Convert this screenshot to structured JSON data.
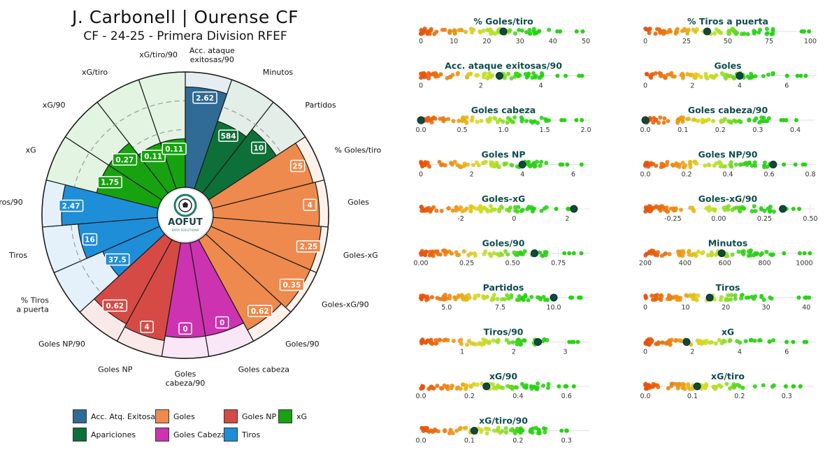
{
  "header": {
    "title": "J. Carbonell  |  Ourense CF",
    "subtitle": "CF - 24-25 - Primera Division RFEF"
  },
  "logo": {
    "text": "AOFUT",
    "tagline": "DATA SOLUTIONS"
  },
  "colors": {
    "acciones": "#2f6b94",
    "apariciones": "#0d7038",
    "goles": "#ee8a4d",
    "goles_cabeza": "#cd32b0",
    "goles_np": "#d64a45",
    "tiros": "#1f8ed8",
    "xg": "#16a30f",
    "strip_title": "#0f4c4e"
  },
  "legend": [
    {
      "label": "Acc. Atq. Exitosas",
      "color": "#2f6b94"
    },
    {
      "label": "Goles",
      "color": "#ee8a4d"
    },
    {
      "label": "Goles NP",
      "color": "#d64a45"
    },
    {
      "label": "xG",
      "color": "#16a30f"
    },
    {
      "label": "Apariciones",
      "color": "#0d7038"
    },
    {
      "label": "Goles Cabeza",
      "color": "#cd32b0"
    },
    {
      "label": "Tiros",
      "color": "#1f8ed8"
    }
  ],
  "chart_data": [
    {
      "type": "pie",
      "chart": "pizza-percentile",
      "title": "J. Carbonell  |  Ourense CF",
      "subtitle": "CF - 24-25 - Primera Division RFEF",
      "slices": [
        {
          "label": "Acc. ataque exitosas/90",
          "value": "2.62",
          "percentile": 87,
          "group": "acciones"
        },
        {
          "label": "Minutos",
          "value": "584",
          "percentile": 62,
          "group": "apariciones"
        },
        {
          "label": "Partidos",
          "value": "10",
          "percentile": 70,
          "group": "apariciones"
        },
        {
          "label": "% Goles/tiro",
          "value": "25",
          "percentile": 90,
          "group": "goles"
        },
        {
          "label": "Goles",
          "value": "4",
          "percentile": 92,
          "group": "goles"
        },
        {
          "label": "Goles-xG",
          "value": "2.25",
          "percentile": 94,
          "group": "goles"
        },
        {
          "label": "Goles-xG/90",
          "value": "0.35",
          "percentile": 94,
          "group": "goles"
        },
        {
          "label": "Goles/90",
          "value": "0.62",
          "percentile": 89,
          "group": "goles"
        },
        {
          "label": "Goles cabeza",
          "value": "0",
          "percentile": 82,
          "group": "goles_cabeza"
        },
        {
          "label": "Goles cabeza/90",
          "value": "0",
          "percentile": 82,
          "group": "goles_cabeza"
        },
        {
          "label": "Goles NP",
          "value": "4",
          "percentile": 86,
          "group": "goles_np"
        },
        {
          "label": "Goles NP/90",
          "value": "0.62",
          "percentile": 83,
          "group": "goles_np"
        },
        {
          "label": "% Tiros a puerta",
          "value": "37.5",
          "percentile": 54,
          "group": "tiros"
        },
        {
          "label": "Tiros",
          "value": "16",
          "percentile": 69,
          "group": "tiros"
        },
        {
          "label": "Tiros/90",
          "value": "2.47",
          "percentile": 83,
          "group": "tiros"
        },
        {
          "label": "xG",
          "value": "1.75",
          "percentile": 55,
          "group": "xg"
        },
        {
          "label": "xG/90",
          "value": "0.27",
          "percentile": 55,
          "group": "xg"
        },
        {
          "label": "xG/tiro",
          "value": "0.11",
          "percentile": 42,
          "group": "xg"
        },
        {
          "label": "xG/tiro/90",
          "value": "0.11",
          "percentile": 42,
          "group": "xg"
        }
      ]
    },
    {
      "type": "scatter",
      "chart": "distribution-strips",
      "strips": [
        {
          "title": "% Goles/tiro",
          "ticks": [
            "0",
            "10",
            "20",
            "30",
            "40",
            "50"
          ],
          "tick_values": [
            0,
            10,
            20,
            30,
            40,
            50
          ],
          "range": [
            0,
            50
          ],
          "player": 25
        },
        {
          "title": "% Tiros a puerta",
          "ticks": [
            "0",
            "25",
            "50",
            "75",
            "100"
          ],
          "tick_values": [
            0,
            25,
            50,
            75,
            100
          ],
          "range": [
            0,
            100
          ],
          "player": 37.5
        },
        {
          "title": "Acc. ataque exitosas/90",
          "ticks": [
            "0",
            "2",
            "4"
          ],
          "tick_values": [
            0,
            2,
            4
          ],
          "range": [
            0,
            5.5
          ],
          "player": 2.62
        },
        {
          "title": "Goles",
          "ticks": [
            "0",
            "2",
            "4",
            "6"
          ],
          "tick_values": [
            0,
            2,
            4,
            6
          ],
          "range": [
            0,
            7
          ],
          "player": 4
        },
        {
          "title": "Goles cabeza",
          "ticks": [
            "0.0",
            "0.5",
            "1.0",
            "1.5",
            "2.0"
          ],
          "tick_values": [
            0,
            0.5,
            1,
            1.5,
            2
          ],
          "range": [
            0,
            2
          ],
          "player": 0
        },
        {
          "title": "Goles cabeza/90",
          "ticks": [
            "0.0",
            "0.1",
            "0.2",
            "0.3",
            "0.4"
          ],
          "tick_values": [
            0,
            0.1,
            0.2,
            0.3,
            0.4
          ],
          "range": [
            0,
            0.44
          ],
          "player": 0
        },
        {
          "title": "Goles NP",
          "ticks": [
            "0",
            "2",
            "4",
            "6"
          ],
          "tick_values": [
            0,
            2,
            4,
            6
          ],
          "range": [
            0,
            6.5
          ],
          "player": 4
        },
        {
          "title": "Goles NP/90",
          "ticks": [
            "0.0",
            "0.2",
            "0.4",
            "0.6",
            "0.8"
          ],
          "tick_values": [
            0,
            0.2,
            0.4,
            0.6,
            0.8
          ],
          "range": [
            0,
            0.8
          ],
          "player": 0.62
        },
        {
          "title": "Goles-xG",
          "ticks": [
            "-2",
            "0",
            "2"
          ],
          "tick_values": [
            -2,
            0,
            2
          ],
          "range": [
            -3.5,
            2.7
          ],
          "player": 2.25
        },
        {
          "title": "Goles-xG/90",
          "ticks": [
            "-0.25",
            "0.00",
            "0.25",
            "0.50"
          ],
          "tick_values": [
            -0.25,
            0,
            0.25,
            0.5
          ],
          "range": [
            -0.4,
            0.5
          ],
          "player": 0.35
        },
        {
          "title": "Goles/90",
          "ticks": [
            "0.00",
            "0.25",
            "0.50",
            "0.75"
          ],
          "tick_values": [
            0,
            0.25,
            0.5,
            0.75
          ],
          "range": [
            0,
            0.9
          ],
          "player": 0.62
        },
        {
          "title": "Minutos",
          "ticks": [
            "200",
            "400",
            "600",
            "800",
            "1000"
          ],
          "tick_values": [
            200,
            400,
            600,
            800,
            1000
          ],
          "range": [
            200,
            1030
          ],
          "player": 584
        },
        {
          "title": "Partidos",
          "ticks": [
            "5.0",
            "7.5",
            "10.0"
          ],
          "tick_values": [
            5,
            7.5,
            10
          ],
          "range": [
            3.8,
            11.5
          ],
          "player": 10
        },
        {
          "title": "Tiros",
          "ticks": [
            "0",
            "10",
            "20",
            "30",
            "40"
          ],
          "tick_values": [
            0,
            10,
            20,
            30,
            40
          ],
          "range": [
            0,
            41
          ],
          "player": 16
        },
        {
          "title": "Tiros/90",
          "ticks": [
            "1",
            "2",
            "3"
          ],
          "tick_values": [
            1,
            2,
            3
          ],
          "range": [
            0.2,
            3.4
          ],
          "player": 2.47
        },
        {
          "title": "xG",
          "ticks": [
            "0",
            "2",
            "4",
            "6"
          ],
          "tick_values": [
            0,
            2,
            4,
            6
          ],
          "range": [
            0,
            7
          ],
          "player": 1.75
        },
        {
          "title": "xG/90",
          "ticks": [
            "0.0",
            "0.2",
            "0.4",
            "0.6"
          ],
          "tick_values": [
            0,
            0.2,
            0.4,
            0.6
          ],
          "range": [
            0,
            0.68
          ],
          "player": 0.27
        },
        {
          "title": "xG/tiro",
          "ticks": [
            "0.0",
            "0.1",
            "0.2",
            "0.3"
          ],
          "tick_values": [
            0,
            0.1,
            0.2,
            0.3
          ],
          "range": [
            0,
            0.35
          ],
          "player": 0.11
        },
        {
          "title": "xG/tiro/90",
          "ticks": [
            "0.0",
            "0.1",
            "0.2",
            "0.3"
          ],
          "tick_values": [
            0,
            0.1,
            0.2,
            0.3
          ],
          "range": [
            0,
            0.34
          ],
          "player": 0.11
        }
      ]
    }
  ]
}
